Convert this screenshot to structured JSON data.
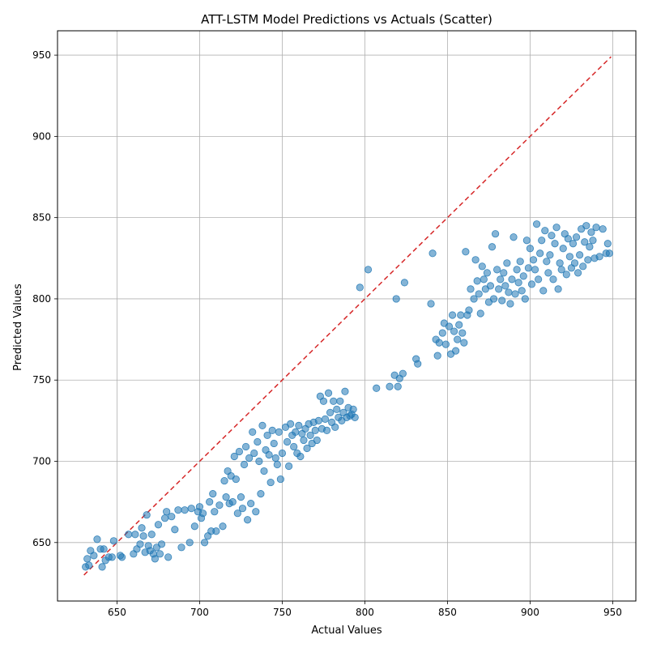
{
  "chart_data": {
    "type": "scatter",
    "title": "ATT-LSTM Model Predictions vs Actuals (Scatter)",
    "xlabel": "Actual Values",
    "ylabel": "Predicted Values",
    "xlim": [
      614,
      964
    ],
    "ylim": [
      614,
      965
    ],
    "xticks": [
      650,
      700,
      750,
      800,
      850,
      900,
      950
    ],
    "yticks": [
      650,
      700,
      750,
      800,
      850,
      900,
      950
    ],
    "grid": true,
    "point_color": "#1f77b4",
    "reference_line": {
      "x": [
        630,
        949
      ],
      "y": [
        630,
        949
      ],
      "color": "#d62728",
      "style": "dashed"
    },
    "points": [
      [
        631,
        635
      ],
      [
        632,
        640
      ],
      [
        633,
        636
      ],
      [
        634,
        645
      ],
      [
        636,
        642
      ],
      [
        638,
        652
      ],
      [
        640,
        646
      ],
      [
        641,
        635
      ],
      [
        642,
        646
      ],
      [
        643,
        639
      ],
      [
        645,
        641
      ],
      [
        647,
        641
      ],
      [
        648,
        651
      ],
      [
        652,
        642
      ],
      [
        653,
        641
      ],
      [
        657,
        655
      ],
      [
        660,
        643
      ],
      [
        661,
        655
      ],
      [
        662,
        646
      ],
      [
        664,
        649
      ],
      [
        665,
        659
      ],
      [
        666,
        654
      ],
      [
        667,
        644
      ],
      [
        668,
        667
      ],
      [
        669,
        648
      ],
      [
        670,
        645
      ],
      [
        671,
        655
      ],
      [
        672,
        643
      ],
      [
        673,
        640
      ],
      [
        674,
        647
      ],
      [
        675,
        661
      ],
      [
        676,
        643
      ],
      [
        677,
        649
      ],
      [
        679,
        665
      ],
      [
        680,
        669
      ],
      [
        681,
        641
      ],
      [
        683,
        666
      ],
      [
        685,
        658
      ],
      [
        687,
        670
      ],
      [
        689,
        647
      ],
      [
        691,
        670
      ],
      [
        694,
        650
      ],
      [
        695,
        671
      ],
      [
        697,
        660
      ],
      [
        699,
        669
      ],
      [
        700,
        672
      ],
      [
        701,
        665
      ],
      [
        702,
        668
      ],
      [
        703,
        650
      ],
      [
        705,
        654
      ],
      [
        706,
        675
      ],
      [
        707,
        657
      ],
      [
        708,
        680
      ],
      [
        709,
        669
      ],
      [
        710,
        657
      ],
      [
        712,
        673
      ],
      [
        714,
        660
      ],
      [
        715,
        688
      ],
      [
        716,
        678
      ],
      [
        717,
        694
      ],
      [
        718,
        674
      ],
      [
        719,
        691
      ],
      [
        720,
        675
      ],
      [
        721,
        703
      ],
      [
        722,
        689
      ],
      [
        723,
        668
      ],
      [
        724,
        706
      ],
      [
        725,
        678
      ],
      [
        726,
        671
      ],
      [
        727,
        698
      ],
      [
        728,
        709
      ],
      [
        729,
        664
      ],
      [
        730,
        702
      ],
      [
        731,
        674
      ],
      [
        732,
        718
      ],
      [
        733,
        705
      ],
      [
        734,
        669
      ],
      [
        735,
        712
      ],
      [
        736,
        700
      ],
      [
        737,
        680
      ],
      [
        738,
        722
      ],
      [
        739,
        694
      ],
      [
        740,
        707
      ],
      [
        741,
        716
      ],
      [
        742,
        704
      ],
      [
        743,
        687
      ],
      [
        744,
        719
      ],
      [
        745,
        711
      ],
      [
        746,
        702
      ],
      [
        747,
        698
      ],
      [
        748,
        718
      ],
      [
        749,
        689
      ],
      [
        750,
        705
      ],
      [
        752,
        721
      ],
      [
        753,
        712
      ],
      [
        754,
        697
      ],
      [
        755,
        723
      ],
      [
        756,
        716
      ],
      [
        757,
        709
      ],
      [
        758,
        718
      ],
      [
        759,
        705
      ],
      [
        760,
        722
      ],
      [
        761,
        703
      ],
      [
        762,
        717
      ],
      [
        763,
        713
      ],
      [
        764,
        720
      ],
      [
        765,
        708
      ],
      [
        766,
        723
      ],
      [
        767,
        716
      ],
      [
        768,
        711
      ],
      [
        769,
        724
      ],
      [
        770,
        719
      ],
      [
        771,
        713
      ],
      [
        772,
        725
      ],
      [
        773,
        740
      ],
      [
        774,
        720
      ],
      [
        775,
        737
      ],
      [
        776,
        726
      ],
      [
        777,
        719
      ],
      [
        778,
        742
      ],
      [
        779,
        730
      ],
      [
        780,
        724
      ],
      [
        781,
        737
      ],
      [
        782,
        721
      ],
      [
        783,
        732
      ],
      [
        784,
        727
      ],
      [
        785,
        737
      ],
      [
        786,
        725
      ],
      [
        787,
        730
      ],
      [
        788,
        743
      ],
      [
        789,
        727
      ],
      [
        790,
        733
      ],
      [
        791,
        728
      ],
      [
        792,
        729
      ],
      [
        793,
        732
      ],
      [
        794,
        727
      ],
      [
        797,
        807
      ],
      [
        802,
        818
      ],
      [
        807,
        745
      ],
      [
        815,
        746
      ],
      [
        818,
        753
      ],
      [
        819,
        800
      ],
      [
        820,
        746
      ],
      [
        821,
        751
      ],
      [
        823,
        754
      ],
      [
        824,
        810
      ],
      [
        831,
        763
      ],
      [
        832,
        760
      ],
      [
        840,
        797
      ],
      [
        841,
        828
      ],
      [
        843,
        775
      ],
      [
        844,
        765
      ],
      [
        845,
        773
      ],
      [
        847,
        779
      ],
      [
        848,
        785
      ],
      [
        849,
        772
      ],
      [
        851,
        783
      ],
      [
        852,
        766
      ],
      [
        853,
        790
      ],
      [
        854,
        780
      ],
      [
        855,
        768
      ],
      [
        856,
        775
      ],
      [
        857,
        784
      ],
      [
        858,
        790
      ],
      [
        859,
        779
      ],
      [
        860,
        773
      ],
      [
        861,
        829
      ],
      [
        862,
        790
      ],
      [
        863,
        793
      ],
      [
        864,
        806
      ],
      [
        866,
        800
      ],
      [
        867,
        824
      ],
      [
        868,
        811
      ],
      [
        869,
        803
      ],
      [
        870,
        791
      ],
      [
        871,
        820
      ],
      [
        872,
        812
      ],
      [
        873,
        806
      ],
      [
        874,
        816
      ],
      [
        875,
        798
      ],
      [
        876,
        808
      ],
      [
        877,
        832
      ],
      [
        878,
        800
      ],
      [
        879,
        840
      ],
      [
        880,
        818
      ],
      [
        881,
        806
      ],
      [
        882,
        812
      ],
      [
        883,
        799
      ],
      [
        884,
        816
      ],
      [
        885,
        808
      ],
      [
        886,
        822
      ],
      [
        887,
        804
      ],
      [
        888,
        797
      ],
      [
        889,
        812
      ],
      [
        890,
        838
      ],
      [
        891,
        803
      ],
      [
        892,
        818
      ],
      [
        893,
        810
      ],
      [
        894,
        823
      ],
      [
        895,
        805
      ],
      [
        896,
        814
      ],
      [
        897,
        800
      ],
      [
        898,
        836
      ],
      [
        899,
        819
      ],
      [
        900,
        831
      ],
      [
        901,
        809
      ],
      [
        902,
        824
      ],
      [
        903,
        818
      ],
      [
        904,
        846
      ],
      [
        905,
        812
      ],
      [
        906,
        828
      ],
      [
        907,
        836
      ],
      [
        908,
        805
      ],
      [
        909,
        842
      ],
      [
        910,
        823
      ],
      [
        911,
        816
      ],
      [
        912,
        827
      ],
      [
        913,
        839
      ],
      [
        914,
        812
      ],
      [
        915,
        834
      ],
      [
        916,
        844
      ],
      [
        917,
        806
      ],
      [
        918,
        822
      ],
      [
        919,
        818
      ],
      [
        920,
        831
      ],
      [
        921,
        840
      ],
      [
        922,
        815
      ],
      [
        923,
        837
      ],
      [
        924,
        826
      ],
      [
        925,
        819
      ],
      [
        926,
        834
      ],
      [
        927,
        822
      ],
      [
        928,
        838
      ],
      [
        929,
        816
      ],
      [
        930,
        827
      ],
      [
        931,
        843
      ],
      [
        932,
        820
      ],
      [
        933,
        835
      ],
      [
        934,
        845
      ],
      [
        935,
        824
      ],
      [
        936,
        832
      ],
      [
        937,
        841
      ],
      [
        938,
        836
      ],
      [
        939,
        825
      ],
      [
        940,
        844
      ],
      [
        942,
        826
      ],
      [
        944,
        843
      ],
      [
        946,
        828
      ],
      [
        947,
        834
      ],
      [
        948,
        828
      ]
    ]
  }
}
